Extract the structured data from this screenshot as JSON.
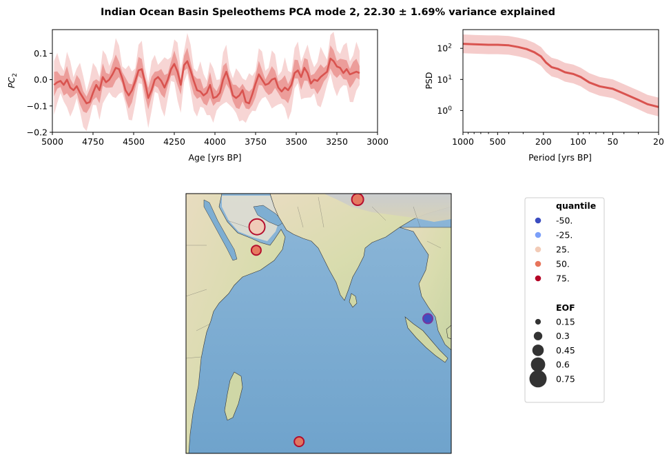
{
  "figure": {
    "title": "Indian Ocean Basin Speleothems PCA mode 2, 22.30 ± 1.69% variance explained"
  },
  "chart_data": [
    {
      "type": "line",
      "name": "pc-timeseries",
      "xlabel": "Age [yrs BP]",
      "ylabel": "PC",
      "ylabel_sub": "2",
      "xlim": [
        5000,
        3000
      ],
      "ylim": [
        -0.2,
        0.19
      ],
      "xticks": [
        "5000",
        "4750",
        "4500",
        "4250",
        "4000",
        "3750",
        "3500",
        "3250",
        "3000"
      ],
      "yticks": [
        "0.1",
        "0.0",
        "−0.1",
        "−0.2"
      ],
      "ytick_values": [
        0.1,
        0.0,
        -0.1,
        -0.2
      ],
      "x": [
        4990,
        4970,
        4950,
        4930,
        4910,
        4890,
        4870,
        4850,
        4830,
        4810,
        4790,
        4770,
        4750,
        4730,
        4710,
        4690,
        4670,
        4650,
        4630,
        4610,
        4590,
        4570,
        4550,
        4530,
        4510,
        4490,
        4470,
        4450,
        4430,
        4410,
        4390,
        4370,
        4350,
        4330,
        4310,
        4290,
        4270,
        4250,
        4230,
        4210,
        4190,
        4170,
        4150,
        4130,
        4110,
        4090,
        4070,
        4050,
        4030,
        4010,
        3990,
        3970,
        3950,
        3930,
        3910,
        3890,
        3870,
        3850,
        3830,
        3810,
        3790,
        3770,
        3750,
        3730,
        3710,
        3690,
        3670,
        3650,
        3630,
        3610,
        3590,
        3570,
        3550,
        3530,
        3510,
        3490,
        3470,
        3450,
        3430,
        3410,
        3390,
        3370,
        3350,
        3330,
        3310,
        3290,
        3270,
        3250,
        3230,
        3210,
        3190,
        3170,
        3150,
        3130,
        3110
      ],
      "y": [
        -0.02,
        -0.01,
        -0.005,
        -0.02,
        0.0,
        -0.03,
        -0.04,
        -0.025,
        -0.05,
        -0.07,
        -0.09,
        -0.085,
        -0.05,
        -0.02,
        -0.04,
        0.01,
        -0.01,
        0.0,
        0.02,
        0.045,
        0.04,
        0.005,
        -0.04,
        -0.06,
        -0.04,
        -0.005,
        0.035,
        0.04,
        -0.01,
        -0.07,
        -0.04,
        0.0,
        0.01,
        -0.005,
        -0.03,
        0.0,
        0.04,
        0.06,
        0.03,
        -0.02,
        0.055,
        0.07,
        0.035,
        -0.005,
        -0.04,
        -0.045,
        -0.06,
        -0.05,
        -0.02,
        -0.07,
        -0.065,
        -0.05,
        0.0,
        0.03,
        -0.01,
        -0.06,
        -0.07,
        -0.06,
        -0.04,
        -0.085,
        -0.09,
        -0.055,
        -0.015,
        0.02,
        0.0,
        -0.02,
        -0.015,
        0.0,
        0.005,
        -0.03,
        -0.045,
        -0.03,
        -0.04,
        -0.02,
        0.025,
        0.035,
        0.01,
        0.045,
        0.025,
        -0.015,
        0.0,
        -0.005,
        0.01,
        0.02,
        0.03,
        0.08,
        0.07,
        0.05,
        0.045,
        0.025,
        0.04,
        0.02,
        0.025,
        0.03,
        0.025
      ],
      "inner_halfwidth": 0.045,
      "outer_halfwidth": 0.1,
      "colors": {
        "line": "#d9534f",
        "inner": "#e88a87",
        "outer": "#f4c7c5"
      }
    },
    {
      "type": "line",
      "name": "psd",
      "xlabel": "Period [yrs BP]",
      "ylabel": "PSD",
      "xscale": "log-reversed",
      "yscale": "log",
      "xlim": [
        1000,
        20
      ],
      "ylim": [
        0.2,
        400
      ],
      "xticks": [
        "1000",
        "500",
        "200",
        "100",
        "50",
        "20"
      ],
      "xtick_values": [
        1000,
        500,
        200,
        100,
        50,
        20
      ],
      "ytick_base": "10",
      "ytick_exps": [
        "2",
        "1",
        "0"
      ],
      "ytick_values": [
        100,
        10,
        1
      ],
      "x": [
        1000,
        800,
        600,
        500,
        400,
        330,
        280,
        240,
        210,
        190,
        170,
        150,
        130,
        110,
        95,
        80,
        65,
        50,
        40,
        30,
        25,
        20
      ],
      "y": [
        140,
        135,
        130,
        130,
        125,
        110,
        95,
        75,
        55,
        35,
        25,
        22,
        17,
        15,
        12,
        8,
        6,
        5,
        3.5,
        2.2,
        1.6,
        1.3
      ],
      "band_factor": 2.0,
      "colors": {
        "line": "#d9534f",
        "band": "#f4c7c5"
      }
    }
  ],
  "map": {
    "region": "Indian Ocean Basin",
    "sites": [
      {
        "lon": 56.2,
        "lat": 23.0,
        "quantile": 25,
        "eof": 0.75
      },
      {
        "lon": 56.0,
        "lat": 17.0,
        "quantile": 50,
        "eof": 0.3
      },
      {
        "lon": 82.0,
        "lat": 30.0,
        "quantile": 50,
        "eof": 0.45
      },
      {
        "lon": 100.0,
        "lat": -0.5,
        "quantile": -50,
        "eof": 0.3
      },
      {
        "lon": 67.0,
        "lat": -32.0,
        "quantile": 50,
        "eof": 0.3
      }
    ]
  },
  "legend": {
    "quantile_title": "quantile",
    "quantiles": [
      {
        "label": "-50.",
        "color": "#3b4cc0"
      },
      {
        "label": "-25.",
        "color": "#7b9ff9"
      },
      {
        "label": "25.",
        "color": "#f2cbb7"
      },
      {
        "label": "50.",
        "color": "#e7745b"
      },
      {
        "label": "75.",
        "color": "#b40426"
      }
    ],
    "eof_title": "EOF",
    "eofs": [
      {
        "label": "0.15",
        "value": 0.15
      },
      {
        "label": "0.3",
        "value": 0.3
      },
      {
        "label": "0.45",
        "value": 0.45
      },
      {
        "label": "0.6",
        "value": 0.6
      },
      {
        "label": "0.75",
        "value": 0.75
      }
    ]
  }
}
